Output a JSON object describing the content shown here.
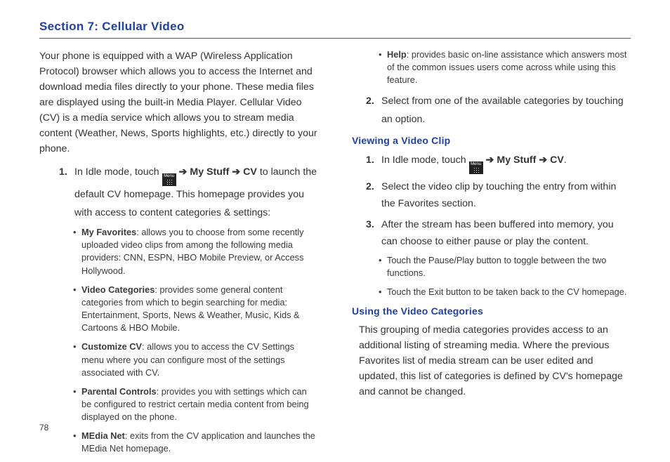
{
  "section_title": "Section 7:  Cellular Video",
  "left": {
    "intro": "Your phone is equipped with a WAP (Wireless Application Protocol) browser which allows you to access the Internet and download media files directly to your phone. These media files are displayed using the built-in Media Player. Cellular Video (CV) is a media service which allows you to stream media content (Weather, News, Sports highlights, etc.) directly to your phone.",
    "step1_num": "1.",
    "step1_a": "In Idle mode, touch ",
    "step1_b": " ➔ ",
    "step1_mystuff": "My Stuff",
    "step1_c": " ➔ ",
    "step1_cv": "CV",
    "step1_d": " to launch the default CV homepage. This homepage provides you with access to content categories & settings:",
    "bullets": [
      {
        "lead": "My Favorites",
        "text": ": allows you to choose from some recently uploaded video clips from among the following media providers: CNN, ESPN, HBO Mobile Preview, or Access Hollywood."
      },
      {
        "lead": "Video Categories",
        "text": ": provides some general content categories from which to begin searching for media: Entertainment, Sports, News & Weather, Music, Kids & Cartoons & HBO Mobile."
      },
      {
        "lead": "Customize CV",
        "text": ": allows you to access the CV Settings menu where you can configure most of the settings associated with CV."
      },
      {
        "lead": "Parental Controls",
        "text": ": provides you with settings which can be configured to restrict certain media content from being displayed on the phone."
      },
      {
        "lead": "MEdia Net",
        "text": ": exits from the CV application and launches the MEdia Net homepage."
      }
    ]
  },
  "right": {
    "top_bullet_lead": "Help",
    "top_bullet_text": ": provides basic on-line assistance which answers most of the common issues users come across while using this feature.",
    "step2_num": "2.",
    "step2": "Select from one of the available categories by touching an option.",
    "h1": "Viewing a Video Clip",
    "v_step1_num": "1.",
    "v_step1_a": "In Idle mode, touch ",
    "v_step1_b": " ➔ ",
    "v_step1_mystuff": "My Stuff",
    "v_step1_c": " ➔ ",
    "v_step1_cv": "CV",
    "v_step1_d": ".",
    "v_step2_num": "2.",
    "v_step2": "Select the video clip by touching the entry from within the Favorites section.",
    "v_step3_num": "3.",
    "v_step3": "After the stream has been buffered into memory, you can choose to either pause or play the content.",
    "v_bullets": [
      "Touch the Pause/Play button to toggle between the two functions.",
      "Touch the Exit button to be taken back to the CV homepage."
    ],
    "h2": "Using the Video Categories",
    "para": "This grouping of media categories provides access to an additional listing of streaming media. Where the previous Favorites list of media stream can be user edited and updated, this list of categories is defined by CV's homepage and cannot be changed."
  },
  "page_number": "78",
  "menu_label": "Menu"
}
